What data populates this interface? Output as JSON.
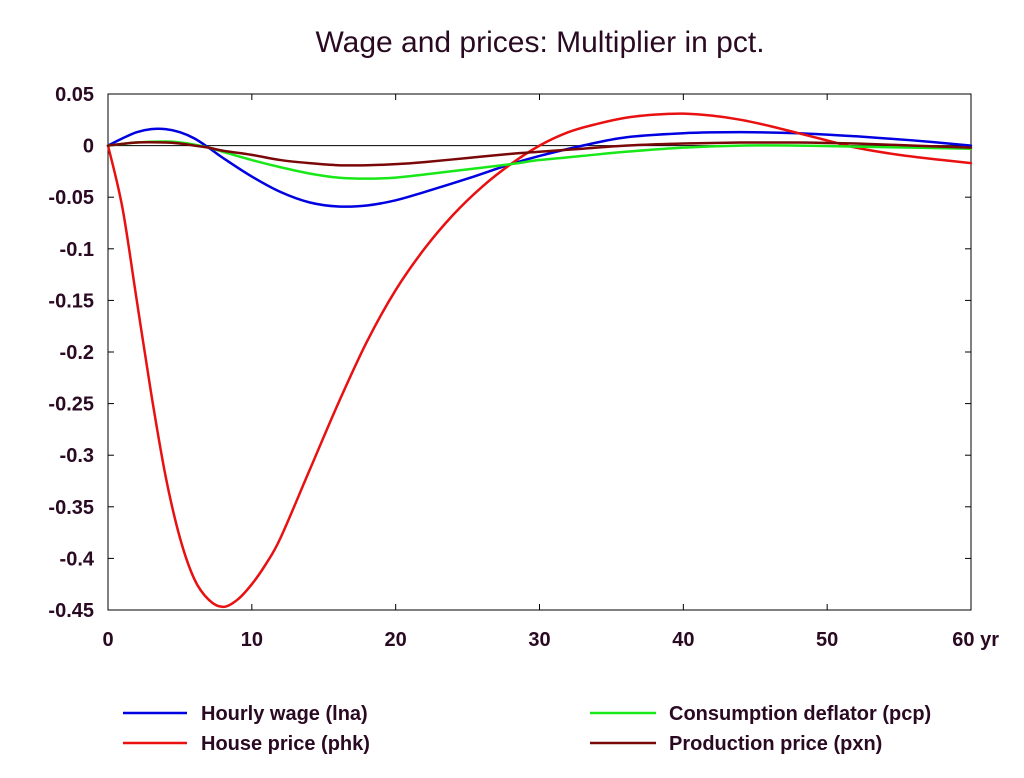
{
  "chart_data": {
    "type": "line",
    "title": "Wage and prices: Multiplier in pct.",
    "xlabel": "",
    "ylabel": "",
    "xlim": [
      0,
      60
    ],
    "ylim": [
      -0.45,
      0.05
    ],
    "x_ticks": [
      0,
      10,
      20,
      30,
      40,
      50,
      60
    ],
    "x_tick_labels": [
      "0",
      "10",
      "20",
      "30",
      "40",
      "50",
      "60 yr"
    ],
    "y_ticks": [
      0.05,
      0,
      -0.05,
      -0.1,
      -0.15,
      -0.2,
      -0.25,
      -0.3,
      -0.35,
      -0.4,
      -0.45
    ],
    "y_tick_labels": [
      "0.05",
      "0",
      "-0.05",
      "-0.1",
      "-0.15",
      "-0.2",
      "-0.25",
      "-0.3",
      "-0.35",
      "-0.4",
      "-0.45"
    ],
    "grid": false,
    "zero_line": true,
    "legend_position": "bottom",
    "series": [
      {
        "name": "Hourly wage (lna)",
        "color": "#0000e0",
        "x": [
          0,
          1,
          2,
          3,
          4,
          5,
          6,
          7,
          8,
          10,
          12,
          14,
          16,
          18,
          20,
          22,
          25,
          28,
          30,
          33,
          36,
          40,
          44,
          48,
          52,
          56,
          60
        ],
        "y": [
          0,
          0.007,
          0.013,
          0.016,
          0.016,
          0.013,
          0.007,
          -0.002,
          -0.012,
          -0.03,
          -0.045,
          -0.055,
          -0.059,
          -0.058,
          -0.053,
          -0.045,
          -0.032,
          -0.018,
          -0.01,
          0.0,
          0.008,
          0.012,
          0.013,
          0.012,
          0.009,
          0.005,
          0.0
        ]
      },
      {
        "name": "House price (phk)",
        "color": "#e81010",
        "x": [
          0,
          1,
          2,
          3,
          4,
          5,
          6,
          7,
          8,
          9,
          10,
          11,
          12,
          14,
          16,
          18,
          20,
          22,
          24,
          26,
          28,
          30,
          32,
          34,
          36,
          38,
          40,
          42,
          44,
          46,
          48,
          50,
          52,
          55,
          58,
          60
        ],
        "y": [
          0,
          -0.06,
          -0.15,
          -0.24,
          -0.32,
          -0.38,
          -0.42,
          -0.44,
          -0.447,
          -0.44,
          -0.425,
          -0.405,
          -0.38,
          -0.315,
          -0.25,
          -0.19,
          -0.14,
          -0.1,
          -0.067,
          -0.04,
          -0.018,
          0.0,
          0.013,
          0.021,
          0.027,
          0.03,
          0.031,
          0.029,
          0.025,
          0.019,
          0.012,
          0.005,
          -0.002,
          -0.009,
          -0.014,
          -0.017
        ]
      },
      {
        "name": "Consumption deflator (pcp)",
        "color": "#18e818",
        "x": [
          0,
          2,
          4,
          5,
          6,
          7,
          8,
          10,
          12,
          14,
          16,
          18,
          20,
          22,
          25,
          28,
          30,
          33,
          36,
          40,
          44,
          48,
          52,
          56,
          60
        ],
        "y": [
          0,
          0.003,
          0.004,
          0.003,
          0.001,
          -0.002,
          -0.006,
          -0.014,
          -0.021,
          -0.027,
          -0.031,
          -0.032,
          -0.031,
          -0.028,
          -0.023,
          -0.018,
          -0.014,
          -0.01,
          -0.006,
          -0.002,
          0.0,
          0.0,
          -0.001,
          -0.002,
          -0.003
        ]
      },
      {
        "name": "Production price (pxn)",
        "color": "#7a0808",
        "x": [
          0,
          2,
          4,
          5,
          6,
          7,
          8,
          10,
          12,
          14,
          16,
          18,
          20,
          22,
          25,
          28,
          30,
          33,
          36,
          40,
          44,
          48,
          52,
          56,
          60
        ],
        "y": [
          0,
          0.003,
          0.003,
          0.002,
          0.0,
          -0.002,
          -0.005,
          -0.009,
          -0.014,
          -0.017,
          -0.019,
          -0.019,
          -0.018,
          -0.016,
          -0.012,
          -0.008,
          -0.006,
          -0.003,
          0.0,
          0.002,
          0.003,
          0.003,
          0.002,
          0.0,
          -0.002
        ]
      }
    ]
  }
}
